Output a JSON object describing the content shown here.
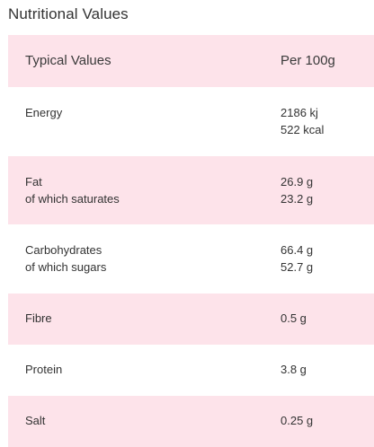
{
  "title": "Nutritional Values",
  "colors": {
    "shaded_row": "#fde3ea",
    "text": "#333333"
  },
  "table": {
    "header": {
      "label": "Typical Values",
      "value": "Per 100g"
    },
    "rows": [
      {
        "labels": [
          "Energy"
        ],
        "values": [
          "2186 kj",
          "522 kcal"
        ],
        "shaded": false
      },
      {
        "labels": [
          "Fat",
          "of which saturates"
        ],
        "values": [
          "26.9 g",
          "23.2 g"
        ],
        "shaded": true
      },
      {
        "labels": [
          "Carbohydrates",
          "of which sugars"
        ],
        "values": [
          "66.4 g",
          "52.7 g"
        ],
        "shaded": false
      },
      {
        "labels": [
          "Fibre"
        ],
        "values": [
          "0.5 g"
        ],
        "shaded": true
      },
      {
        "labels": [
          "Protein"
        ],
        "values": [
          "3.8 g"
        ],
        "shaded": false
      },
      {
        "labels": [
          "Salt"
        ],
        "values": [
          "0.25 g"
        ],
        "shaded": true
      }
    ]
  }
}
